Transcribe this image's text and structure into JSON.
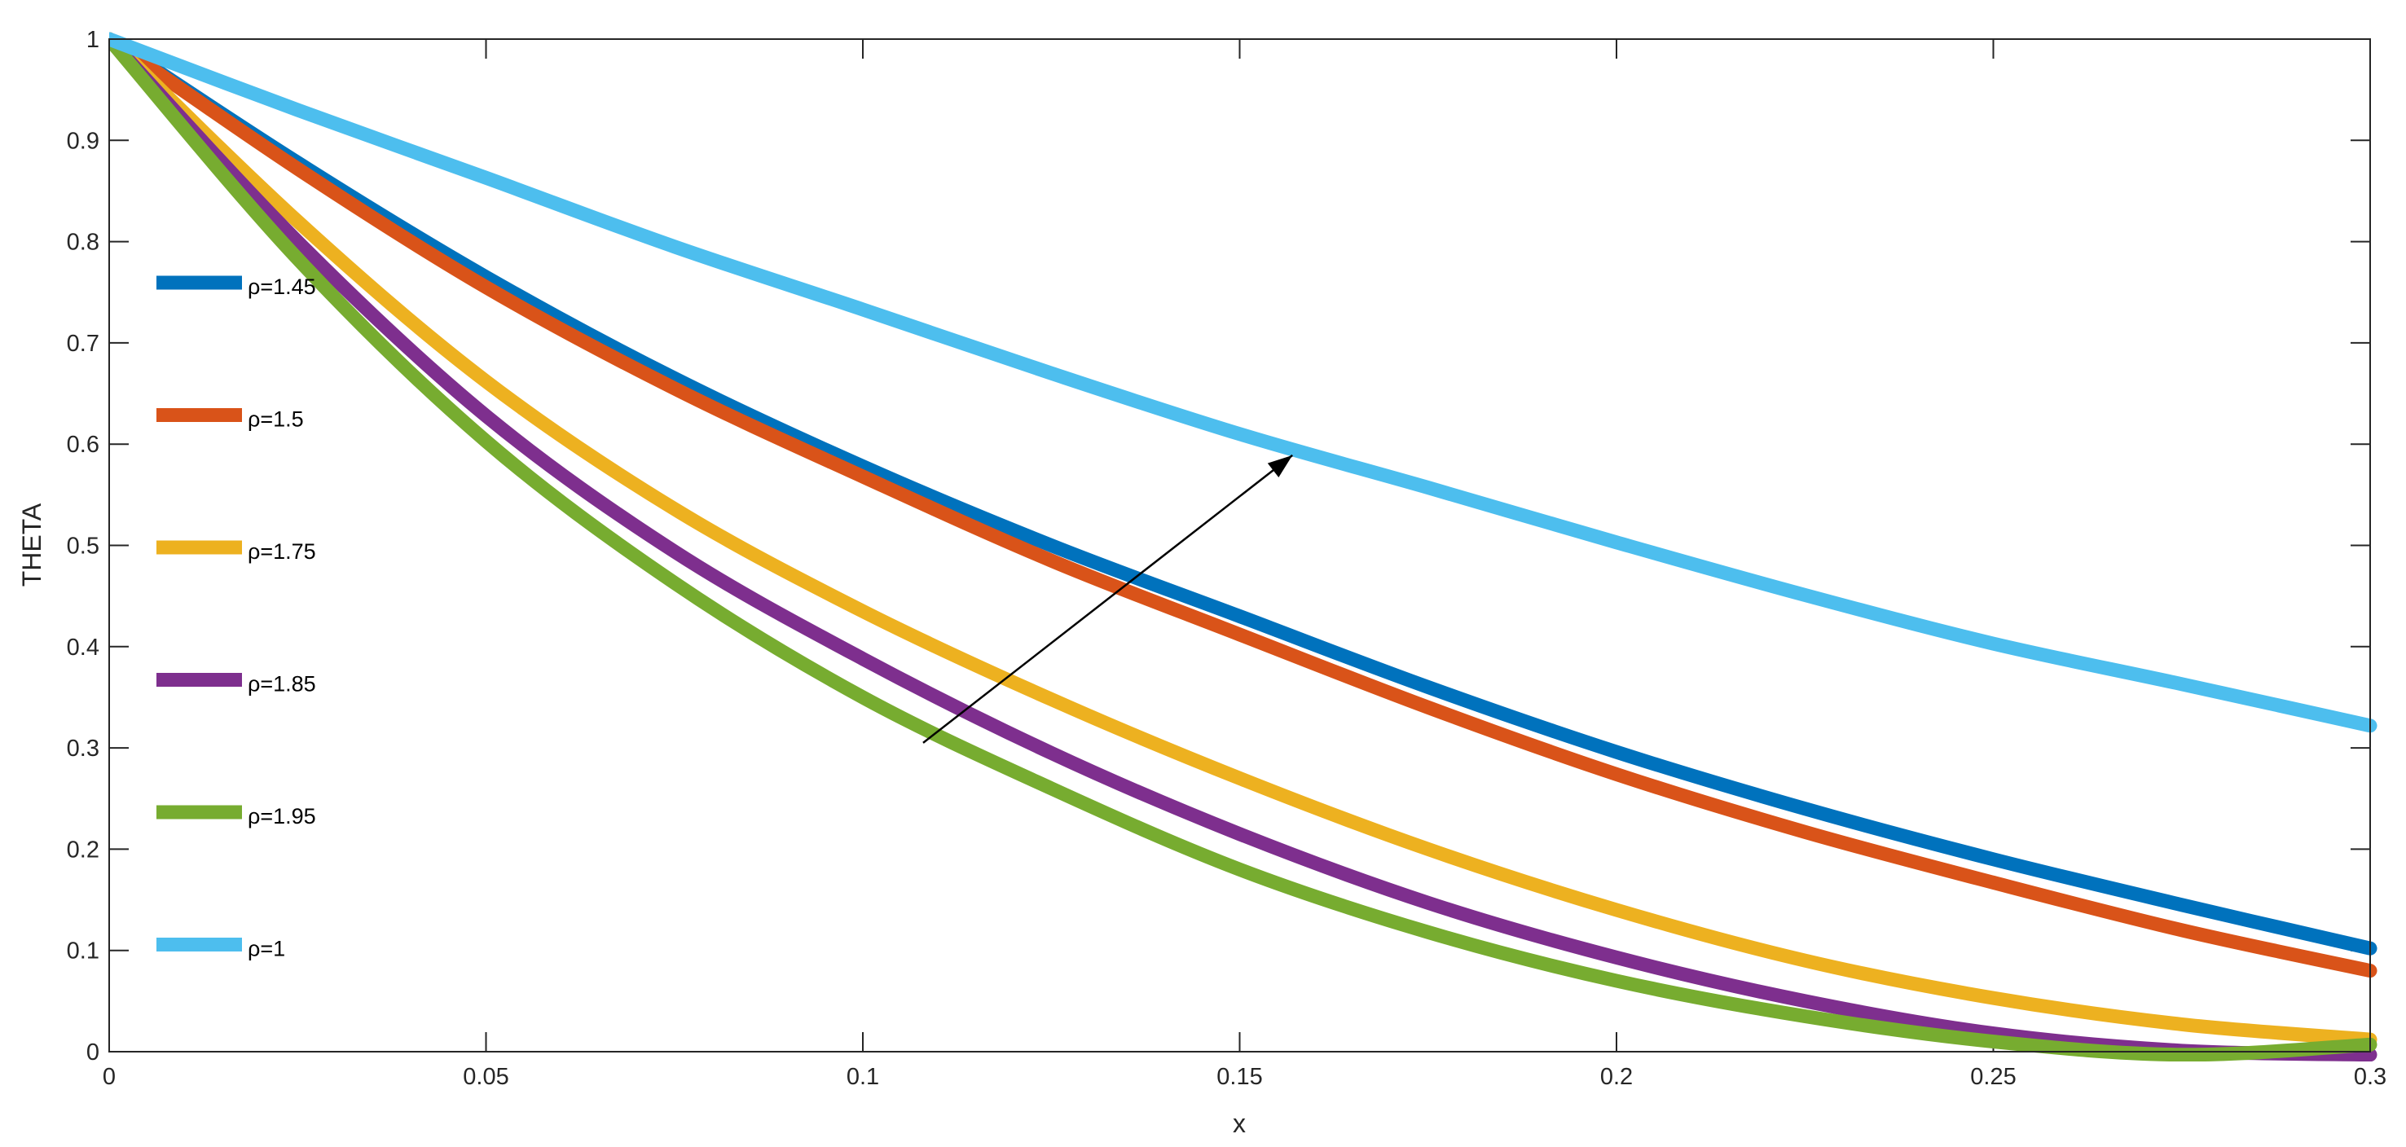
{
  "chart_data": {
    "type": "line",
    "xlabel": "x",
    "ylabel": "THETA",
    "xlim": [
      0,
      0.3
    ],
    "ylim": [
      0,
      1
    ],
    "xticks": [
      "0",
      "0.05",
      "0.1",
      "0.15",
      "0.2",
      "0.25",
      "0.3"
    ],
    "yticks": [
      "0",
      "0.1",
      "0.2",
      "0.3",
      "0.4",
      "0.5",
      "0.6",
      "0.7",
      "0.8",
      "0.9",
      "1"
    ],
    "grid": false,
    "legend_position": "left",
    "x": [
      0,
      0.025,
      0.05,
      0.075,
      0.1,
      0.125,
      0.15,
      0.175,
      0.2,
      0.225,
      0.25,
      0.275,
      0.3
    ],
    "series": [
      {
        "name": "ρ=1.45",
        "color": "#0072BD",
        "values": [
          1.0,
          0.878,
          0.765,
          0.665,
          0.578,
          0.5,
          0.43,
          0.36,
          0.296,
          0.24,
          0.19,
          0.145,
          0.102
        ]
      },
      {
        "name": "ρ=1.5",
        "color": "#D95319",
        "values": [
          1.0,
          0.872,
          0.755,
          0.655,
          0.568,
          0.485,
          0.412,
          0.34,
          0.274,
          0.217,
          0.167,
          0.12,
          0.08
        ]
      },
      {
        "name": "ρ=1.75",
        "color": "#EDB120",
        "values": [
          1.0,
          0.82,
          0.662,
          0.536,
          0.435,
          0.348,
          0.27,
          0.2,
          0.14,
          0.09,
          0.053,
          0.027,
          0.012
        ]
      },
      {
        "name": "ρ=1.85",
        "color": "#7E2F8E",
        "values": [
          1.0,
          0.8,
          0.628,
          0.494,
          0.388,
          0.295,
          0.215,
          0.147,
          0.093,
          0.05,
          0.018,
          0.001,
          -0.003
        ]
      },
      {
        "name": "ρ=1.95",
        "color": "#77AC30",
        "values": [
          1.0,
          0.783,
          0.603,
          0.463,
          0.35,
          0.26,
          0.18,
          0.118,
          0.07,
          0.035,
          0.01,
          -0.003,
          0.007
        ]
      },
      {
        "name": "ρ=1",
        "color": "#4DBEEE",
        "values": [
          1.0,
          0.93,
          0.863,
          0.795,
          0.733,
          0.67,
          0.61,
          0.557,
          0.503,
          0.451,
          0.403,
          0.363,
          0.322
        ]
      }
    ],
    "annotations": [
      {
        "type": "arrow",
        "from": [
          0.108,
          0.305
        ],
        "to": [
          0.157,
          0.589
        ]
      }
    ]
  }
}
